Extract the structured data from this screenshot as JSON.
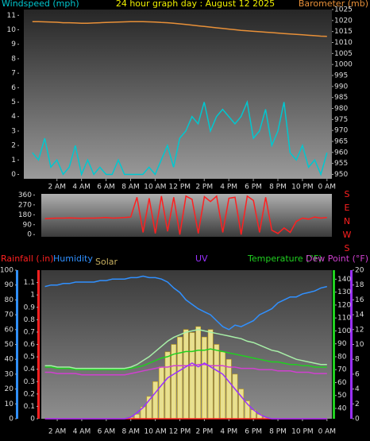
{
  "chart_data": [
    {
      "type": "line",
      "title": "24 hour graph day : August 12 2025",
      "x": [
        0,
        0.5,
        1,
        1.5,
        2,
        2.5,
        3,
        3.5,
        4,
        4.5,
        5,
        5.5,
        6,
        6.5,
        7,
        7.5,
        8,
        8.5,
        9,
        9.5,
        10,
        10.5,
        11,
        11.5,
        12,
        12.5,
        13,
        13.5,
        14,
        14.5,
        15,
        15.5,
        16,
        16.5,
        17,
        17.5,
        18,
        18.5,
        19,
        19.5,
        20,
        20.5,
        21,
        21.5,
        22,
        22.5,
        23,
        23.5,
        24
      ],
      "xlim": [
        -0.7,
        24.4
      ],
      "xticks": [
        {
          "value": 2,
          "label": "2 AM"
        },
        {
          "value": 4,
          "label": "4 AM"
        },
        {
          "value": 6,
          "label": "6 AM"
        },
        {
          "value": 8,
          "label": "8 AM"
        },
        {
          "value": 10,
          "label": "10 AM"
        },
        {
          "value": 12,
          "label": "12 PM"
        },
        {
          "value": 14,
          "label": "2 PM"
        },
        {
          "value": 16,
          "label": "4 PM"
        },
        {
          "value": 18,
          "label": "6 PM"
        },
        {
          "value": 20,
          "label": "8 PM"
        },
        {
          "value": 22,
          "label": "10 PM"
        },
        {
          "value": 24,
          "label": "0 AM"
        }
      ],
      "ylim": [
        -0.3,
        11.4
      ],
      "yticks": [
        0,
        1,
        2,
        3,
        4,
        5,
        6,
        7,
        8,
        9,
        10,
        11
      ],
      "y2lim": [
        948,
        1025
      ],
      "y2ticks": [
        950,
        955,
        960,
        965,
        970,
        975,
        980,
        985,
        990,
        995,
        1000,
        1005,
        1010,
        1015,
        1020,
        1025
      ],
      "series": [
        {
          "name": "Windspeed (mph)",
          "color": "#00c8d0",
          "axis": "y",
          "values": [
            1.5,
            1,
            2.5,
            0.5,
            1,
            0,
            0.5,
            2,
            0,
            1,
            0,
            0.5,
            0,
            0,
            1,
            0,
            0,
            0,
            0,
            0.5,
            0,
            1,
            2,
            0.5,
            2.5,
            3,
            4,
            3.5,
            5,
            3,
            4,
            4.5,
            4,
            3.5,
            4,
            5,
            2.5,
            3,
            4.5,
            2,
            3,
            5,
            1.5,
            1,
            2,
            0.5,
            1,
            0,
            1.5
          ]
        },
        {
          "name": "Barometer (mb)",
          "color": "#e89038",
          "axis": "y2",
          "values": [
            1019.5,
            1019.5,
            1019.4,
            1019.3,
            1019.2,
            1019,
            1019,
            1018.9,
            1018.8,
            1018.8,
            1018.9,
            1019,
            1019.1,
            1019.2,
            1019.3,
            1019.4,
            1019.5,
            1019.5,
            1019.5,
            1019.4,
            1019.3,
            1019.1,
            1019,
            1018.8,
            1018.5,
            1018.2,
            1017.9,
            1017.6,
            1017.3,
            1017,
            1016.7,
            1016.4,
            1016.1,
            1015.8,
            1015.5,
            1015.3,
            1015.1,
            1014.9,
            1014.7,
            1014.5,
            1014.3,
            1014.1,
            1013.9,
            1013.7,
            1013.5,
            1013.3,
            1013.1,
            1012.9,
            1012.8
          ]
        }
      ]
    },
    {
      "type": "line",
      "x": [
        1,
        1.5,
        2,
        2.5,
        3,
        3.5,
        4,
        4.5,
        5,
        5.5,
        6,
        6.5,
        7,
        7.5,
        8,
        8.5,
        9,
        9.5,
        10,
        10.5,
        11,
        11.5,
        12,
        12.5,
        13,
        13.5,
        14,
        14.5,
        15,
        15.5,
        16,
        16.5,
        17,
        17.5,
        18,
        18.5,
        19,
        19.5,
        20,
        20.5,
        21,
        21.5,
        22,
        22.5,
        23,
        23.5,
        24
      ],
      "xlim": [
        0.7,
        24.4
      ],
      "ylim": [
        -20,
        370
      ],
      "yticks": [
        0,
        90,
        180,
        270,
        360
      ],
      "y2labels": [
        "S",
        "E",
        "N",
        "W",
        "S"
      ],
      "series": [
        {
          "color": "#ff2020",
          "values": [
            145,
            148,
            150,
            150,
            152,
            150,
            148,
            150,
            150,
            152,
            155,
            150,
            152,
            155,
            160,
            340,
            20,
            330,
            10,
            350,
            30,
            340,
            0,
            350,
            320,
            10,
            345,
            300,
            350,
            20,
            330,
            340,
            0,
            350,
            310,
            20,
            340,
            40,
            10,
            60,
            20,
            120,
            150,
            140,
            160,
            150,
            155
          ]
        }
      ]
    },
    {
      "type": "line",
      "x": [
        1,
        1.5,
        2,
        2.5,
        3,
        3.5,
        4,
        4.5,
        5,
        5.5,
        6,
        6.5,
        7,
        7.5,
        8,
        8.5,
        9,
        9.5,
        10,
        10.5,
        11,
        11.5,
        12,
        12.5,
        13,
        13.5,
        14,
        14.5,
        15,
        15.5,
        16,
        16.5,
        17,
        17.5,
        18,
        18.5,
        19,
        19.5,
        20,
        20.5,
        21,
        21.5,
        22,
        22.5,
        23,
        23.5,
        24
      ],
      "xlim": [
        0.7,
        24.4
      ],
      "xticks": [
        {
          "value": 2,
          "label": "2 AM"
        },
        {
          "value": 4,
          "label": "4 AM"
        },
        {
          "value": 6,
          "label": "6 AM"
        },
        {
          "value": 8,
          "label": "8 AM"
        },
        {
          "value": 10,
          "label": "10 AM"
        },
        {
          "value": 12,
          "label": "12 PM"
        },
        {
          "value": 14,
          "label": "2 PM"
        },
        {
          "value": 16,
          "label": "4 PM"
        },
        {
          "value": 18,
          "label": "6 PM"
        },
        {
          "value": 20,
          "label": "8 PM"
        },
        {
          "value": 22,
          "label": "10 PM"
        },
        {
          "value": 24,
          "label": "0 AM"
        }
      ],
      "ylim": [
        0,
        100
      ],
      "yticks": [
        0,
        10,
        20,
        30,
        40,
        50,
        60,
        70,
        80,
        90,
        100
      ],
      "y2lim": [
        32,
        147
      ],
      "y2ticks": [
        40,
        50,
        60,
        70,
        80,
        90,
        100,
        110,
        120,
        130,
        140
      ],
      "y3lim": [
        0,
        1.2
      ],
      "y3ticks": [
        0,
        0.1,
        0.2,
        0.3,
        0.4,
        0.5,
        0.6,
        0.7,
        0.8,
        0.9,
        1,
        1.1
      ],
      "y4lim": [
        0,
        20
      ],
      "y4ticks": [
        0,
        2,
        4,
        6,
        8,
        10,
        12,
        14,
        16,
        18,
        20
      ],
      "series": [
        {
          "name": "Solar",
          "color": "#e8e090",
          "axis": "y",
          "type": "bar",
          "values": [
            0,
            0,
            0,
            0,
            0,
            0,
            0,
            0,
            0,
            0,
            0,
            0,
            0,
            0,
            1,
            3,
            8,
            15,
            25,
            35,
            45,
            50,
            55,
            60,
            58,
            62,
            55,
            60,
            50,
            45,
            40,
            30,
            20,
            12,
            6,
            3,
            1,
            0,
            0,
            0,
            0,
            0,
            0,
            0,
            0,
            0,
            0
          ]
        },
        {
          "name": "Rainfall (.in)",
          "color": "#ff2020",
          "axis": "y3",
          "values": [
            0,
            0,
            0,
            0,
            0,
            0,
            0,
            0,
            0,
            0,
            0,
            0,
            0,
            0,
            0,
            0,
            0,
            0,
            0,
            0,
            0,
            0,
            0,
            0,
            0,
            0,
            0,
            0,
            0,
            0,
            0,
            0,
            0,
            0,
            0,
            0,
            0,
            0,
            0,
            0,
            0,
            0,
            0,
            0,
            0,
            0,
            0
          ]
        },
        {
          "name": "Humidity",
          "color": "#3090ff",
          "axis": "y",
          "values": [
            89,
            90,
            90,
            91,
            91,
            92,
            92,
            92,
            92,
            93,
            93,
            94,
            94,
            94,
            95,
            95,
            96,
            95,
            95,
            94,
            92,
            88,
            85,
            80,
            77,
            74,
            72,
            70,
            66,
            62,
            60,
            63,
            62,
            64,
            66,
            70,
            72,
            74,
            78,
            80,
            82,
            82,
            84,
            85,
            86,
            88,
            89
          ]
        },
        {
          "color": "#a8f0a8",
          "axis": "y2",
          "values": [
            73,
            73,
            72,
            72,
            72,
            71,
            71,
            71,
            71,
            71,
            71,
            71,
            71,
            71,
            72,
            74,
            77,
            80,
            84,
            88,
            92,
            95,
            97,
            99,
            100,
            101,
            100,
            99,
            98,
            97,
            96,
            95,
            94,
            92,
            91,
            89,
            87,
            85,
            84,
            82,
            80,
            78,
            77,
            76,
            75,
            74,
            74
          ]
        },
        {
          "name": "Temperature (°F)",
          "color": "#20d020",
          "axis": "y2",
          "values": [
            72,
            72,
            71,
            71,
            71,
            70,
            70,
            70,
            70,
            70,
            70,
            70,
            70,
            70,
            71,
            72,
            73,
            75,
            77,
            79,
            80,
            82,
            83,
            84,
            84,
            85,
            85,
            86,
            85,
            84,
            83,
            82,
            81,
            80,
            79,
            78,
            77,
            76,
            76,
            75,
            74,
            74,
            73,
            73,
            72,
            72,
            72
          ]
        },
        {
          "name": "Dew Point (°F)",
          "color": "#d040d0",
          "axis": "y2",
          "values": [
            68,
            68,
            67,
            67,
            67,
            67,
            66,
            66,
            66,
            66,
            66,
            66,
            66,
            66,
            67,
            68,
            69,
            70,
            71,
            72,
            72,
            73,
            73,
            73,
            73,
            74,
            74,
            73,
            73,
            73,
            72,
            72,
            71,
            71,
            71,
            70,
            70,
            70,
            69,
            69,
            69,
            68,
            68,
            68,
            67,
            67,
            67
          ]
        },
        {
          "name": "UV",
          "color": "#9a30ff",
          "axis": "y4",
          "values": [
            0,
            0,
            0,
            0,
            0,
            0,
            0,
            0,
            0,
            0,
            0,
            0,
            0,
            0,
            0.2,
            0.8,
            1.5,
            2.5,
            3.5,
            4.5,
            5.5,
            6,
            6.5,
            7,
            7.5,
            7,
            7.5,
            7,
            6.5,
            6,
            5,
            4,
            3,
            2,
            1.2,
            0.6,
            0.2,
            0,
            0,
            0,
            0,
            0,
            0,
            0,
            0,
            0,
            0
          ]
        }
      ]
    }
  ]
}
